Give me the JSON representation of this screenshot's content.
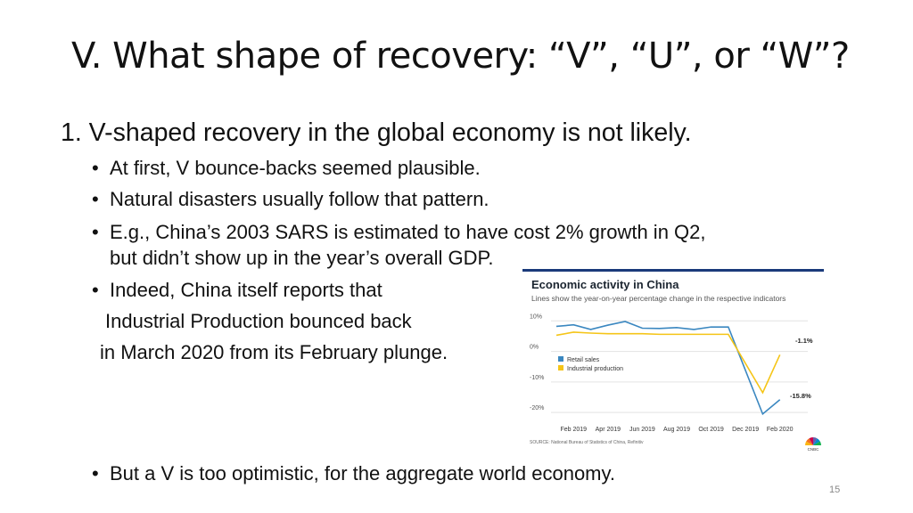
{
  "title": "V.  What shape of recovery: “V”, “U”, or “W”?",
  "point1": "1. V-shaped recovery in the global economy is not likely.",
  "bullets": [
    "At first, V bounce-backs seemed plausible.",
    "Natural disasters usually follow that pattern.",
    "E.g., China’s 2003 SARS is estimated to have cost 2% growth in Q2,",
    "Indeed, China itself reports that"
  ],
  "bullet3_cont": "but didn’t show up in the year’s overall GDP.",
  "bullet4_line2": "Industrial Production bounced back",
  "bullet4_line3": "in March 2020 from its February plunge.",
  "final_bullet": "But a V is too optimistic, for the aggregate world economy.",
  "bullet_glyph": "•",
  "page_number": "15",
  "chart_data": {
    "type": "line",
    "title": "Economic activity in China",
    "subtitle": "Lines show the year-on-year percentage change in the respective indicators",
    "x": [
      "2019-01",
      "2019-02",
      "2019-03",
      "2019-04",
      "2019-05",
      "2019-06",
      "2019-07",
      "2019-08",
      "2019-09",
      "2019-10",
      "2019-11",
      "2019-12",
      "2020-01",
      "2020-02",
      "2020-03"
    ],
    "x_tick_labels": [
      "Feb 2019",
      "Apr 2019",
      "Jun 2019",
      "Aug 2019",
      "Oct 2019",
      "Dec 2019",
      "Feb 2020"
    ],
    "y_tick_labels": [
      "10%",
      "0%",
      "-10%",
      "-20%"
    ],
    "y_ticks": [
      10,
      0,
      -10,
      -20
    ],
    "ylim": [
      -22,
      13
    ],
    "series": [
      {
        "name": "Retail sales",
        "color": "#3a87c0",
        "values": [
          8.2,
          8.7,
          7.2,
          8.6,
          9.8,
          7.6,
          7.5,
          7.8,
          7.2,
          8.0,
          8.0,
          null,
          -20.5,
          -15.8,
          null
        ],
        "points_x": [
          1,
          2,
          3,
          4,
          5,
          6,
          7,
          8,
          9,
          10,
          11,
          12,
          13,
          14
        ]
      },
      {
        "name": "Industrial production",
        "color": "#f5c518",
        "values": [
          5.3,
          6.3,
          6.0,
          5.8,
          5.8,
          5.8,
          5.6,
          5.6,
          5.6,
          5.6,
          5.6,
          null,
          -13.5,
          -1.1,
          null
        ],
        "points_x": [
          1,
          2,
          3,
          4,
          5,
          6,
          7,
          8,
          9,
          10,
          11,
          12,
          13,
          14
        ]
      }
    ],
    "annotations": [
      "-1.1%",
      "-15.8%"
    ],
    "source": "SOURCE: National Bureau of Statistics of China, Refinitiv",
    "logo": "CNBC",
    "legend_position": "center-left"
  }
}
